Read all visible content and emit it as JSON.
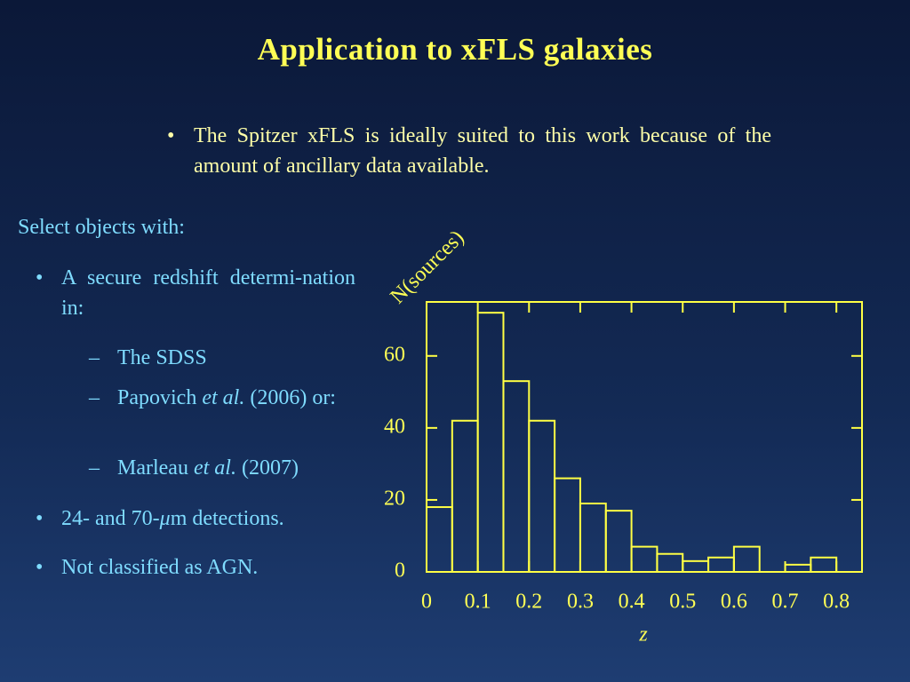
{
  "header": {
    "title": "Application to xFLS galaxies"
  },
  "intro": {
    "bullet": "•",
    "text": "The Spitzer xFLS is ideally suited to this work because of the amount of ancillary data available."
  },
  "criteria": {
    "heading": "Select objects with:",
    "bullet": "•",
    "dash": "–",
    "item1": "A secure redshift determi-nation in:",
    "sources": [
      [
        "The SDSS"
      ],
      [
        "Papovich",
        "et al.",
        "(2006) or:"
      ],
      [
        "Marleau",
        "et al.",
        "(2007)"
      ]
    ],
    "item2": [
      "24- and 70-",
      "μ",
      "m detections."
    ],
    "item3": "Not classified as AGN."
  },
  "chart_data": {
    "type": "histogram",
    "bins": [
      0,
      0.05,
      0.1,
      0.15,
      0.2,
      0.25,
      0.3,
      0.35,
      0.4,
      0.45,
      0.5,
      0.55,
      0.6,
      0.65,
      0.7,
      0.75,
      0.8,
      0.85
    ],
    "values": [
      18,
      42,
      72,
      53,
      42,
      26,
      19,
      17,
      7,
      5,
      3,
      4,
      7,
      0,
      2,
      4,
      0
    ],
    "color": "#ffff44",
    "xlim": [
      0,
      0.85
    ],
    "ylim": [
      0,
      75
    ],
    "xticks": [
      0,
      0.1,
      0.2,
      0.3,
      0.4,
      0.5,
      0.6,
      0.7,
      0.8
    ],
    "yticks": [
      0,
      20,
      40,
      60
    ],
    "xlabel": "z",
    "ylabel": "N(sources)"
  }
}
